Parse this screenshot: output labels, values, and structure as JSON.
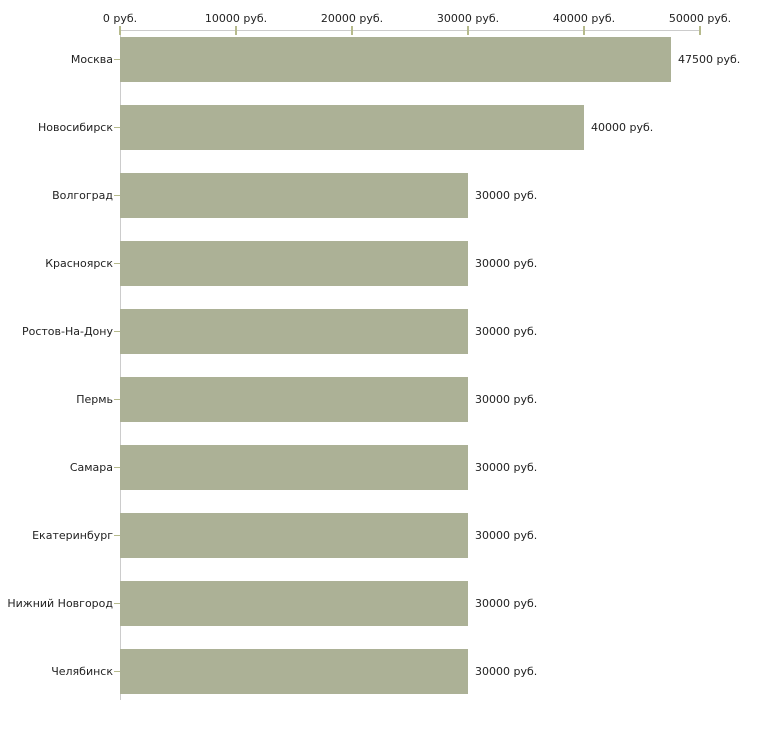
{
  "chart_data": {
    "type": "bar",
    "orientation": "horizontal",
    "categories": [
      "Москва",
      "Новосибирск",
      "Волгоград",
      "Красноярск",
      "Ростов-На-Дону",
      "Пермь",
      "Самара",
      "Екатеринбург",
      "Нижний Новгород",
      "Челябинск"
    ],
    "values": [
      47500,
      40000,
      30000,
      30000,
      30000,
      30000,
      30000,
      30000,
      30000,
      30000
    ],
    "value_labels": [
      "47500 руб.",
      "40000 руб.",
      "30000 руб.",
      "30000 руб.",
      "30000 руб.",
      "30000 руб.",
      "30000 руб.",
      "30000 руб.",
      "30000 руб.",
      "30000 руб."
    ],
    "x_axis": {
      "position": "top",
      "range": [
        0,
        50000
      ],
      "ticks": [
        0,
        10000,
        20000,
        30000,
        40000,
        50000
      ],
      "tick_labels": [
        "0 руб.",
        "10000 руб.",
        "20000 руб.",
        "30000 руб.",
        "40000 руб.",
        "50000 руб."
      ]
    },
    "grid": false,
    "legend": false,
    "colors": {
      "bar": "#acb196",
      "axis_line": "#cccccc",
      "tick": "#b6ba8c",
      "text": "#222222",
      "background": "#ffffff"
    }
  }
}
